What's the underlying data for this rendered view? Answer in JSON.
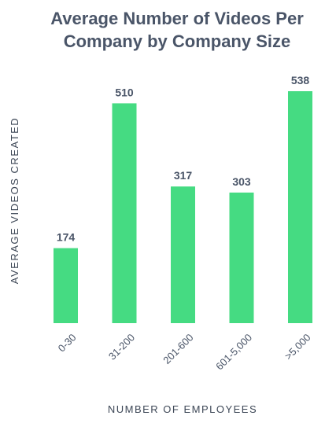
{
  "chart_data": {
    "type": "bar",
    "title_lines": [
      "Average Number of Videos Per",
      "Company by Company Size"
    ],
    "xlabel": "NUMBER OF EMPLOYEES",
    "ylabel": "AVERAGE  VIDEOS CREATED",
    "categories": [
      "0-30",
      "31-200",
      "201-600",
      "601-5,000",
      ">5,000"
    ],
    "values": [
      174,
      510,
      317,
      303,
      538
    ],
    "value_labels": [
      "174",
      "510",
      "317",
      "303",
      "538"
    ],
    "ylim": [
      0,
      538
    ],
    "grid": false,
    "legend": "none",
    "bar_color": "#45db82"
  }
}
